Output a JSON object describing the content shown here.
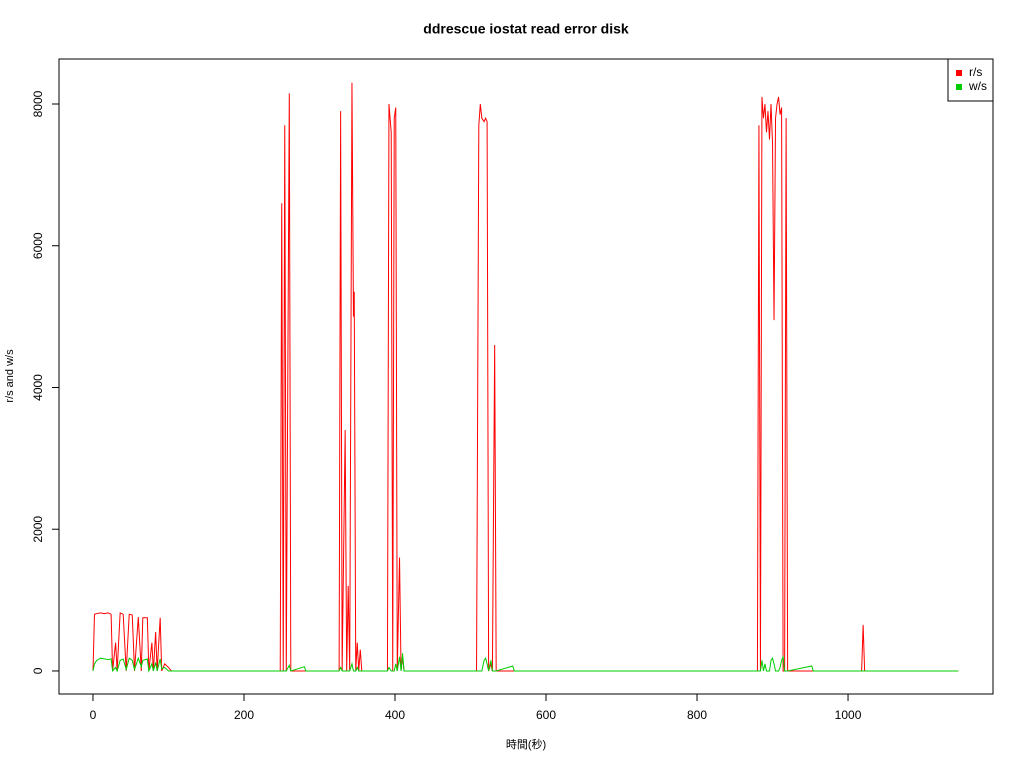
{
  "chart_data": {
    "type": "line",
    "title": "ddrescue iostat read error disk",
    "x_label": "時間(秒)",
    "y_label": "r/s and w/s",
    "x": [
      0,
      2,
      5,
      10,
      15,
      20,
      24,
      26,
      30,
      32,
      36,
      40,
      44,
      48,
      52,
      55,
      60,
      64,
      66,
      72,
      74,
      78,
      80,
      83,
      85,
      89,
      91,
      95,
      100,
      104,
      248,
      250,
      252,
      254,
      256,
      260,
      262,
      280,
      282,
      326,
      328,
      330,
      334,
      336,
      338,
      340,
      343,
      345,
      346,
      348,
      350,
      352,
      354,
      356,
      390,
      392,
      395,
      397,
      399,
      401,
      403,
      406,
      408,
      410,
      412,
      508,
      511,
      513,
      515,
      518,
      520,
      522,
      524,
      527,
      529,
      532,
      534,
      556,
      558,
      880,
      882,
      884,
      886,
      888,
      890,
      892,
      894,
      896,
      898,
      900,
      902,
      904,
      906,
      908,
      910,
      912,
      914,
      916,
      918,
      920,
      952,
      954,
      1018,
      1020,
      1022,
      1146
    ],
    "series": [
      {
        "name": "r/s",
        "color": "#ff0000",
        "values": [
          0,
          800,
          810,
          820,
          810,
          820,
          800,
          0,
          400,
          0,
          820,
          800,
          0,
          800,
          790,
          0,
          760,
          0,
          750,
          750,
          0,
          400,
          0,
          550,
          0,
          750,
          0,
          100,
          50,
          0,
          0,
          6600,
          0,
          7700,
          0,
          8150,
          0,
          0,
          0,
          0,
          7900,
          0,
          3400,
          0,
          1200,
          0,
          8300,
          5000,
          5350,
          0,
          400,
          0,
          300,
          0,
          0,
          8000,
          7600,
          0,
          7800,
          7950,
          0,
          1600,
          0,
          200,
          0,
          0,
          7700,
          8000,
          7800,
          7750,
          7800,
          7750,
          0,
          100,
          0,
          4600,
          0,
          0,
          0,
          0,
          7700,
          0,
          8100,
          7800,
          8000,
          7600,
          7900,
          7500,
          8000,
          7450,
          4950,
          7800,
          8000,
          8100,
          7850,
          7950,
          0,
          0,
          7800,
          0,
          0,
          0,
          0,
          650,
          0,
          0
        ]
      },
      {
        "name": "w/s",
        "color": "#00cd00",
        "values": [
          0,
          100,
          150,
          180,
          170,
          160,
          170,
          0,
          50,
          0,
          150,
          170,
          20,
          180,
          150,
          20,
          180,
          60,
          150,
          170,
          0,
          100,
          0,
          120,
          0,
          170,
          30,
          50,
          0,
          0,
          0,
          0,
          0,
          0,
          0,
          80,
          0,
          60,
          0,
          0,
          50,
          0,
          0,
          0,
          0,
          0,
          100,
          0,
          0,
          0,
          50,
          0,
          0,
          0,
          0,
          50,
          0,
          0,
          0,
          100,
          0,
          200,
          0,
          250,
          0,
          0,
          0,
          0,
          0,
          150,
          180,
          100,
          0,
          150,
          0,
          0,
          0,
          70,
          0,
          0,
          0,
          0,
          150,
          0,
          100,
          0,
          0,
          0,
          150,
          180,
          100,
          0,
          0,
          0,
          50,
          150,
          200,
          0,
          0,
          0,
          70,
          0,
          0,
          0,
          0,
          0
        ]
      }
    ],
    "xlim": [
      -45,
      1192
    ],
    "ylim": [
      -325,
      8635
    ],
    "xticks": [
      0,
      200,
      400,
      600,
      800,
      1000
    ],
    "yticks": [
      0,
      2000,
      4000,
      6000,
      8000
    ],
    "legend_position": "top-right"
  }
}
